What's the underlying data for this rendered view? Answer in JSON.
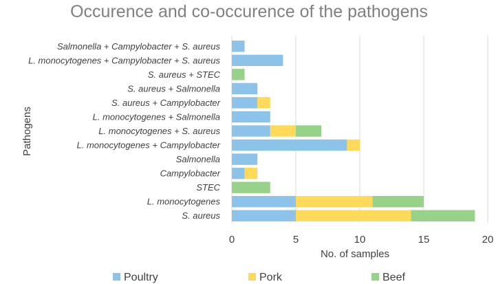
{
  "chart_data": {
    "type": "bar",
    "orientation": "horizontal",
    "stacked": true,
    "title": "Occurence and co-occurence of the pathogens",
    "xlabel": "No. of samples",
    "ylabel": "Pathogens",
    "xlim": [
      0,
      20
    ],
    "xticks": [
      0,
      5,
      10,
      15,
      20
    ],
    "grid": true,
    "legend_position": "bottom",
    "categories": [
      "Salmonella + Campylobacter + S. aureus",
      "L. monocytogenes + Campylobacter + S. aureus",
      "S. aureus + STEC",
      "S. aureus + Salmonella",
      "S. aureus + Campylobacter",
      "L. monocytogenes + Salmonella",
      "L. monocytogenes + S. aureus",
      "L. monocytogenes + Campylobacter",
      "Salmonella",
      "Campylobacter",
      "STEC",
      "L. monocytogenes",
      "S. aureus"
    ],
    "series": [
      {
        "name": "Poultry",
        "color": "#8dc3e8",
        "values": [
          1,
          4,
          0,
          2,
          2,
          3,
          3,
          9,
          2,
          1,
          0,
          5,
          5
        ]
      },
      {
        "name": "Pork",
        "color": "#ffd95a",
        "values": [
          0,
          0,
          0,
          0,
          1,
          0,
          2,
          1,
          0,
          1,
          0,
          6,
          9
        ]
      },
      {
        "name": "Beef",
        "color": "#98d18a",
        "values": [
          0,
          0,
          1,
          0,
          0,
          0,
          2,
          0,
          0,
          0,
          3,
          4,
          5
        ]
      }
    ]
  }
}
